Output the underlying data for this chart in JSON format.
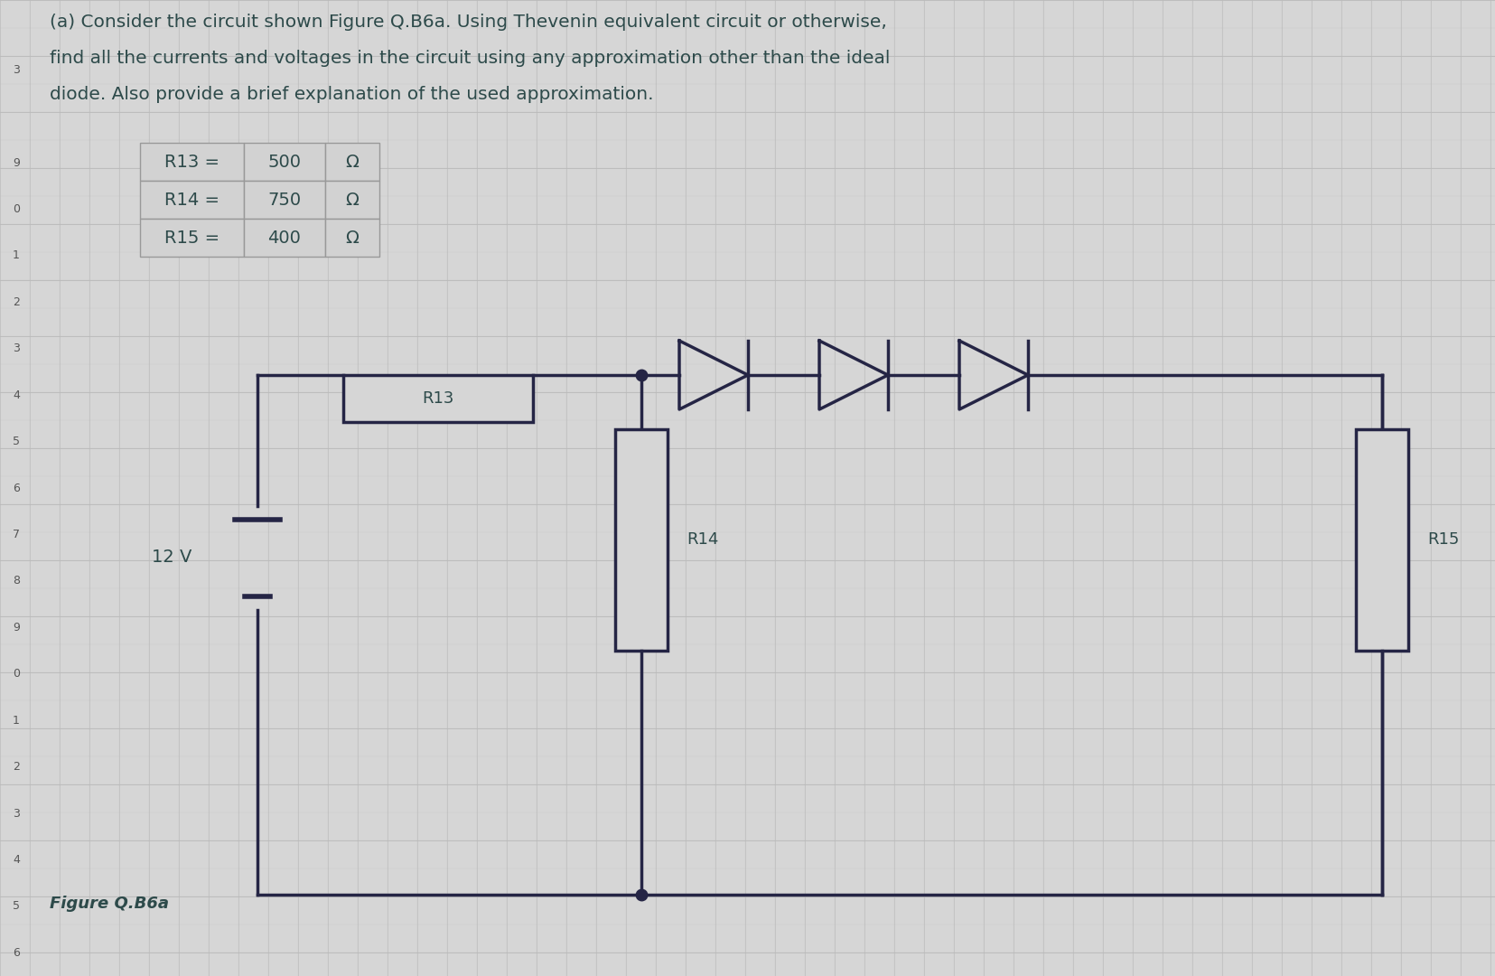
{
  "title_line1": "(a) Consider the circuit shown Figure Q.B6a. Using Thevenin equivalent circuit or otherwise,",
  "title_line2": "find all the currents and voltages in the circuit using any approximation other than the ideal",
  "title_line3": "diode. Also provide a brief explanation of the used approximation.",
  "table_data": [
    [
      "R13 =",
      "500",
      "Ω"
    ],
    [
      "R14 =",
      "750",
      "Ω"
    ],
    [
      "R15 =",
      "400",
      "Ω"
    ]
  ],
  "voltage_label": "12 V",
  "figure_label": "Figure Q.B6a",
  "r13_label": "R13",
  "r14_label": "R14",
  "r15_label": "R15",
  "bg_color": "#d6d6d6",
  "grid_color": "#bbbbbb",
  "line_color": "#1a1a2e",
  "text_color": "#2d4a4a",
  "row_nums": [
    "",
    "",
    "",
    "3",
    "",
    "9",
    "0",
    "1",
    "2",
    "3",
    "4",
    "5",
    "6",
    "7",
    "8",
    "9",
    "0",
    "1",
    "2",
    "3",
    "4",
    "5"
  ],
  "circuit_color": "#252545"
}
